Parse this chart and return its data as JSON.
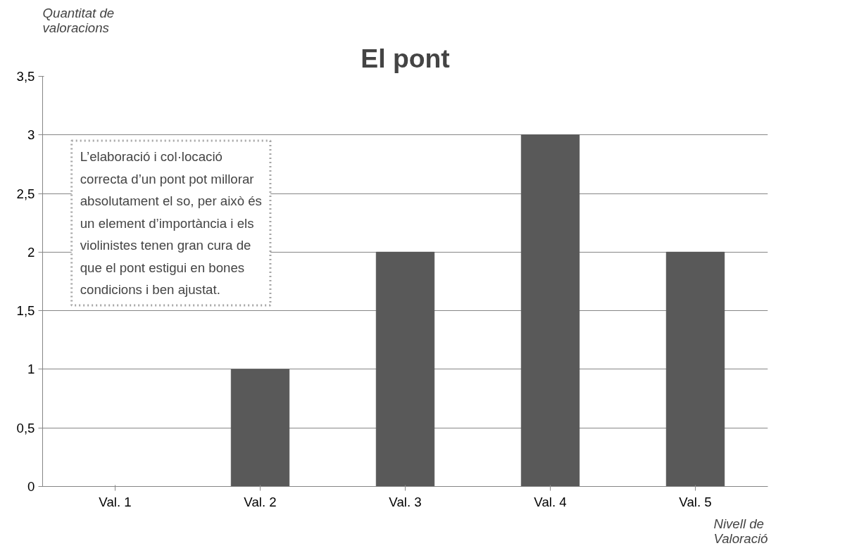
{
  "chart_data": {
    "type": "bar",
    "title": "El pont",
    "ylabel": "Quantitat de valoracions",
    "xlabel": "Nivell de Valoració",
    "categories": [
      "Val. 1",
      "Val. 2",
      "Val. 3",
      "Val. 4",
      "Val. 5"
    ],
    "values": [
      0,
      1,
      2,
      3,
      2
    ],
    "color": "#595959",
    "ylim": [
      0,
      3.5
    ],
    "yticks": [
      0,
      {
        "value": 0.5,
        "label": "0,5"
      },
      1,
      {
        "value": 1.5,
        "label": "1,5"
      },
      2,
      {
        "value": 2.5,
        "label": "2,5"
      },
      3,
      {
        "value": 3.5,
        "label": "3,5"
      }
    ],
    "grid": "y",
    "annotations": [
      "L’elaboració i col·locació correcta d’un pont pot millorar absolutament el so, per això és un element d’importància  i els violinistes tenen gran cura de que el pont estigui en bones condicions i ben ajustat."
    ]
  }
}
